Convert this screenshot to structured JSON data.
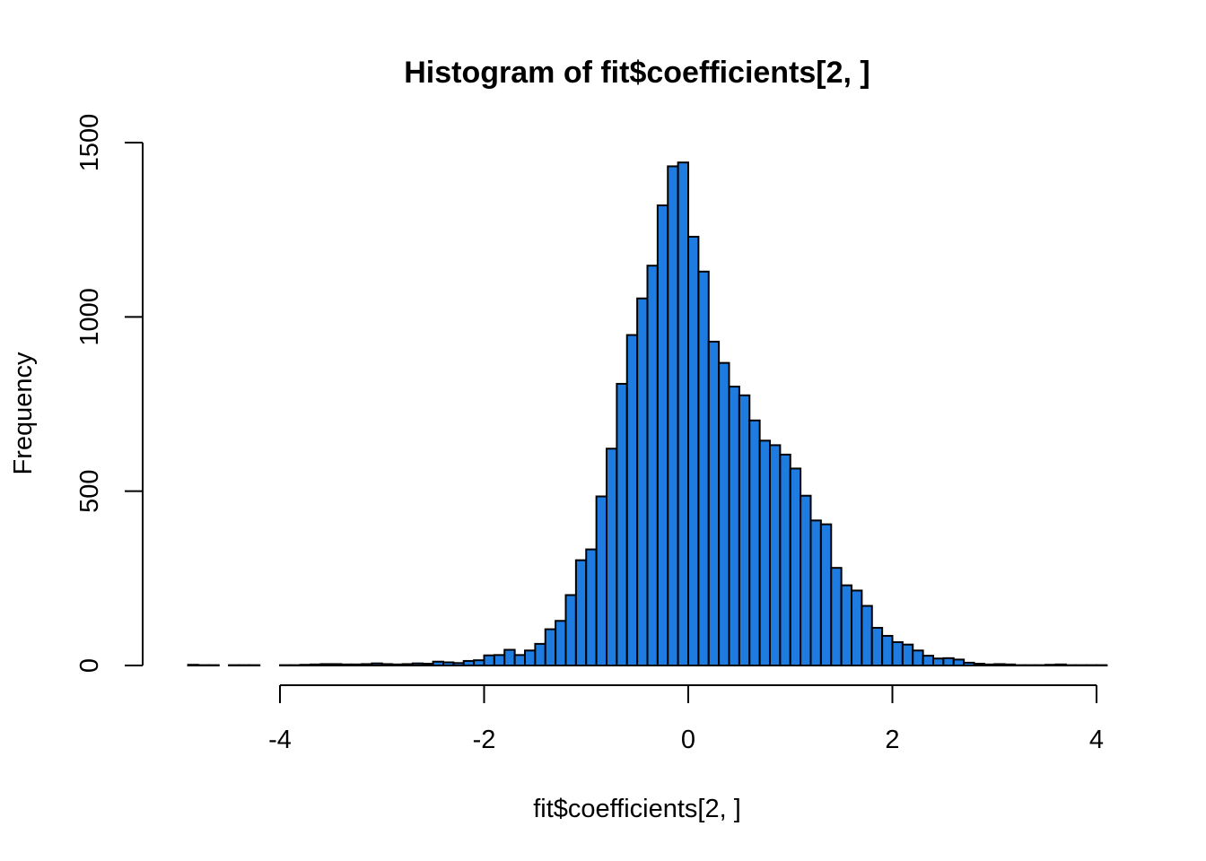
{
  "chart_data": {
    "type": "bar",
    "title": "Histogram of fit$coefficients[2, ]",
    "xlabel": "fit$coefficients[2, ]",
    "ylabel": "Frequency",
    "xlim": [
      -4.9,
      4.0
    ],
    "ylim": [
      0,
      1500
    ],
    "x_ticks": [
      -4,
      -2,
      0,
      2,
      4
    ],
    "y_ticks": [
      0,
      500,
      1000,
      1500
    ],
    "bin_width": 0.1,
    "bin_start": -4.9,
    "values": [
      2,
      1,
      1,
      0,
      1,
      1,
      1,
      0,
      0,
      1,
      1,
      2,
      3,
      4,
      4,
      3,
      3,
      4,
      6,
      4,
      3,
      4,
      6,
      5,
      11,
      9,
      7,
      13,
      15,
      29,
      30,
      45,
      30,
      43,
      62,
      104,
      128,
      202,
      302,
      333,
      485,
      622,
      808,
      948,
      1053,
      1147,
      1320,
      1432,
      1443,
      1230,
      1130,
      929,
      868,
      800,
      775,
      703,
      645,
      632,
      605,
      565,
      487,
      416,
      405,
      280,
      230,
      215,
      171,
      108,
      85,
      67,
      60,
      43,
      28,
      20,
      21,
      17,
      8,
      5,
      3,
      4,
      3,
      1,
      1,
      1,
      2,
      3,
      1,
      1,
      1,
      1
    ],
    "colors": {
      "bar_fill": "#1e7be0",
      "bar_edge": "#000000",
      "axis": "#000000",
      "background": "#ffffff"
    },
    "grid": false,
    "legend": false
  }
}
